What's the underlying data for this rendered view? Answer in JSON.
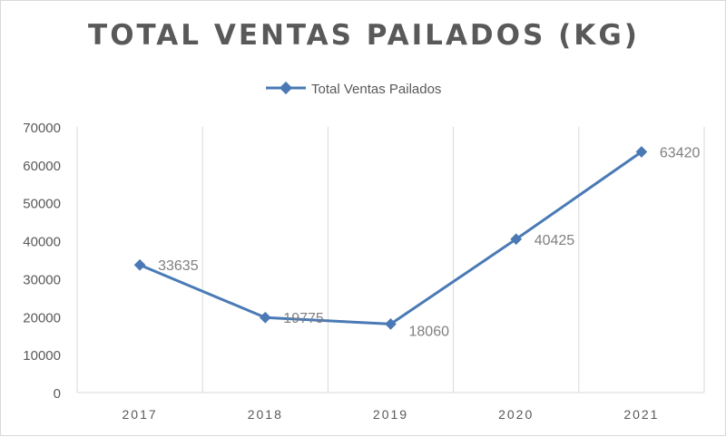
{
  "chart_data": {
    "type": "line",
    "title": "TOTAL VENTAS PAILADOS (KG)",
    "xlabel": "",
    "ylabel": "",
    "categories": [
      "2017",
      "2018",
      "2019",
      "2020",
      "2021"
    ],
    "series": [
      {
        "name": "Total Ventas Pailados",
        "values": [
          33635,
          19775,
          18060,
          40425,
          63420
        ]
      }
    ],
    "data_labels": [
      "33635",
      "19775",
      "18060",
      "40425",
      "63420"
    ],
    "ylim": [
      0,
      70000
    ],
    "y_ticks": [
      "0",
      "10000",
      "20000",
      "30000",
      "40000",
      "50000",
      "60000",
      "70000"
    ],
    "gridlines": "vertical",
    "legend_position": "top",
    "colors": {
      "series_line": "#4a7ab5",
      "gridline": "#d9d9d9",
      "axis_text": "#595959",
      "label_text": "#7f7f7f"
    }
  }
}
